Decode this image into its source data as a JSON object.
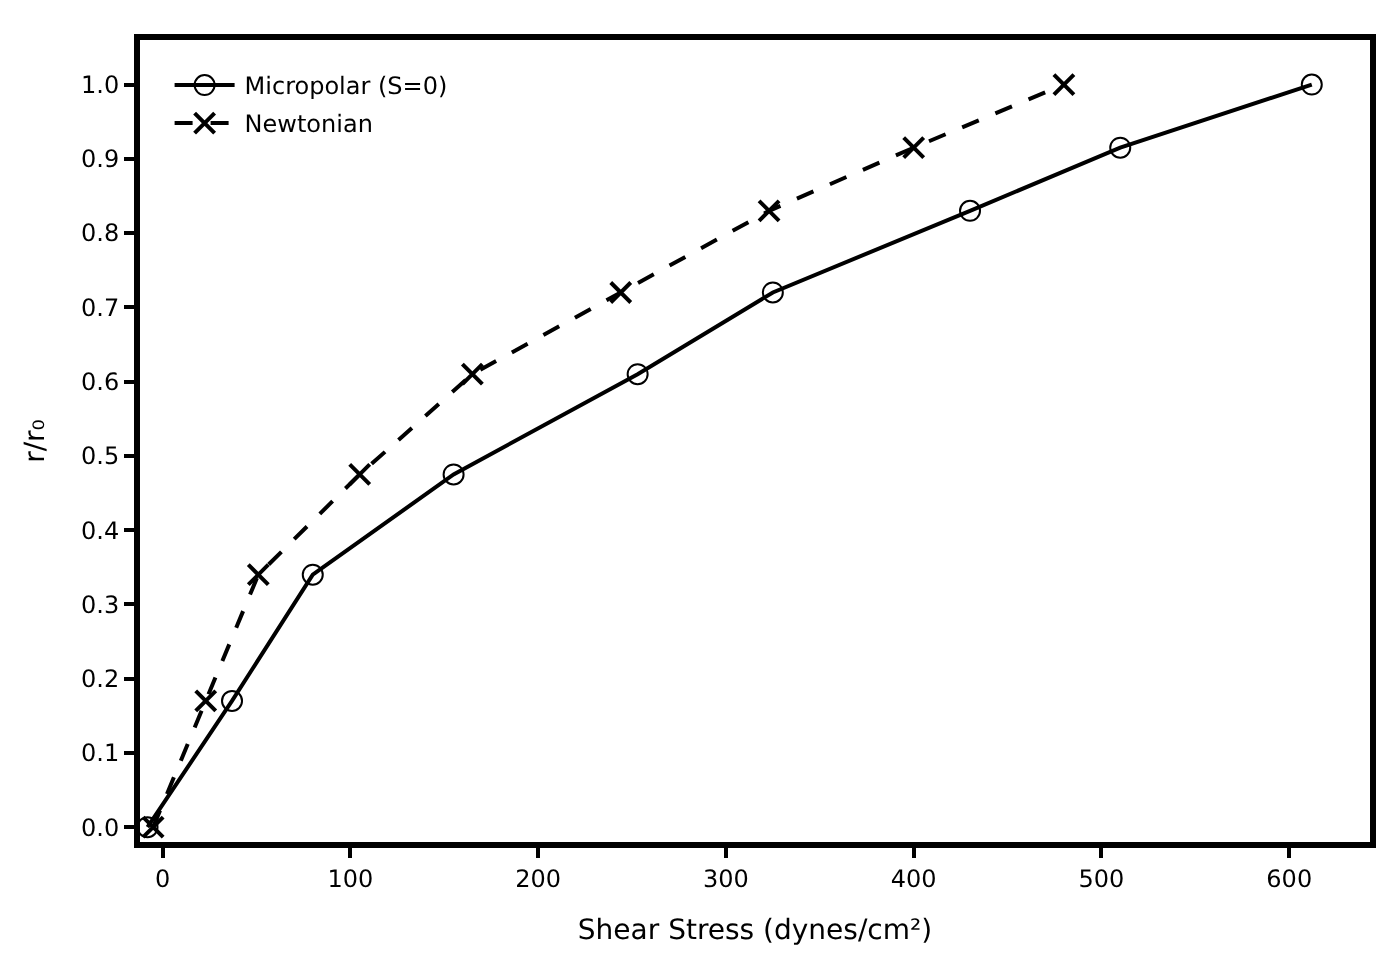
{
  "chart_data": {
    "type": "line",
    "xlabel": "Shear Stress (dynes/cm²)",
    "ylabel": "r/r₀",
    "xlim": [
      -12,
      643
    ],
    "ylim": [
      -0.02,
      1.06
    ],
    "xticks": [
      0,
      100,
      200,
      300,
      400,
      500,
      600
    ],
    "yticks": [
      {
        "value": 0,
        "label": "0.0"
      },
      0.1,
      0.2,
      0.3,
      0.4,
      0.5,
      0.6,
      0.7,
      0.8,
      0.9,
      {
        "value": 1,
        "label": "1.0"
      }
    ],
    "legend": "top left",
    "series": [
      {
        "name": "Micropolar (S=0)",
        "color": "#000000",
        "marker": "circle",
        "line_style": "solid",
        "x": [
          -8,
          37,
          80,
          155,
          253,
          325,
          430,
          510,
          612
        ],
        "values": [
          0.0,
          0.17,
          0.34,
          0.475,
          0.61,
          0.72,
          0.83,
          0.915,
          1.0
        ]
      },
      {
        "name": "Newtonian",
        "color": "#000000",
        "marker": "cross",
        "line_style": "dashed",
        "x": [
          -5,
          23,
          51,
          105,
          165,
          244,
          323,
          400,
          480
        ],
        "values": [
          0.0,
          0.17,
          0.34,
          0.475,
          0.61,
          0.72,
          0.83,
          0.915,
          1.0
        ]
      }
    ]
  }
}
